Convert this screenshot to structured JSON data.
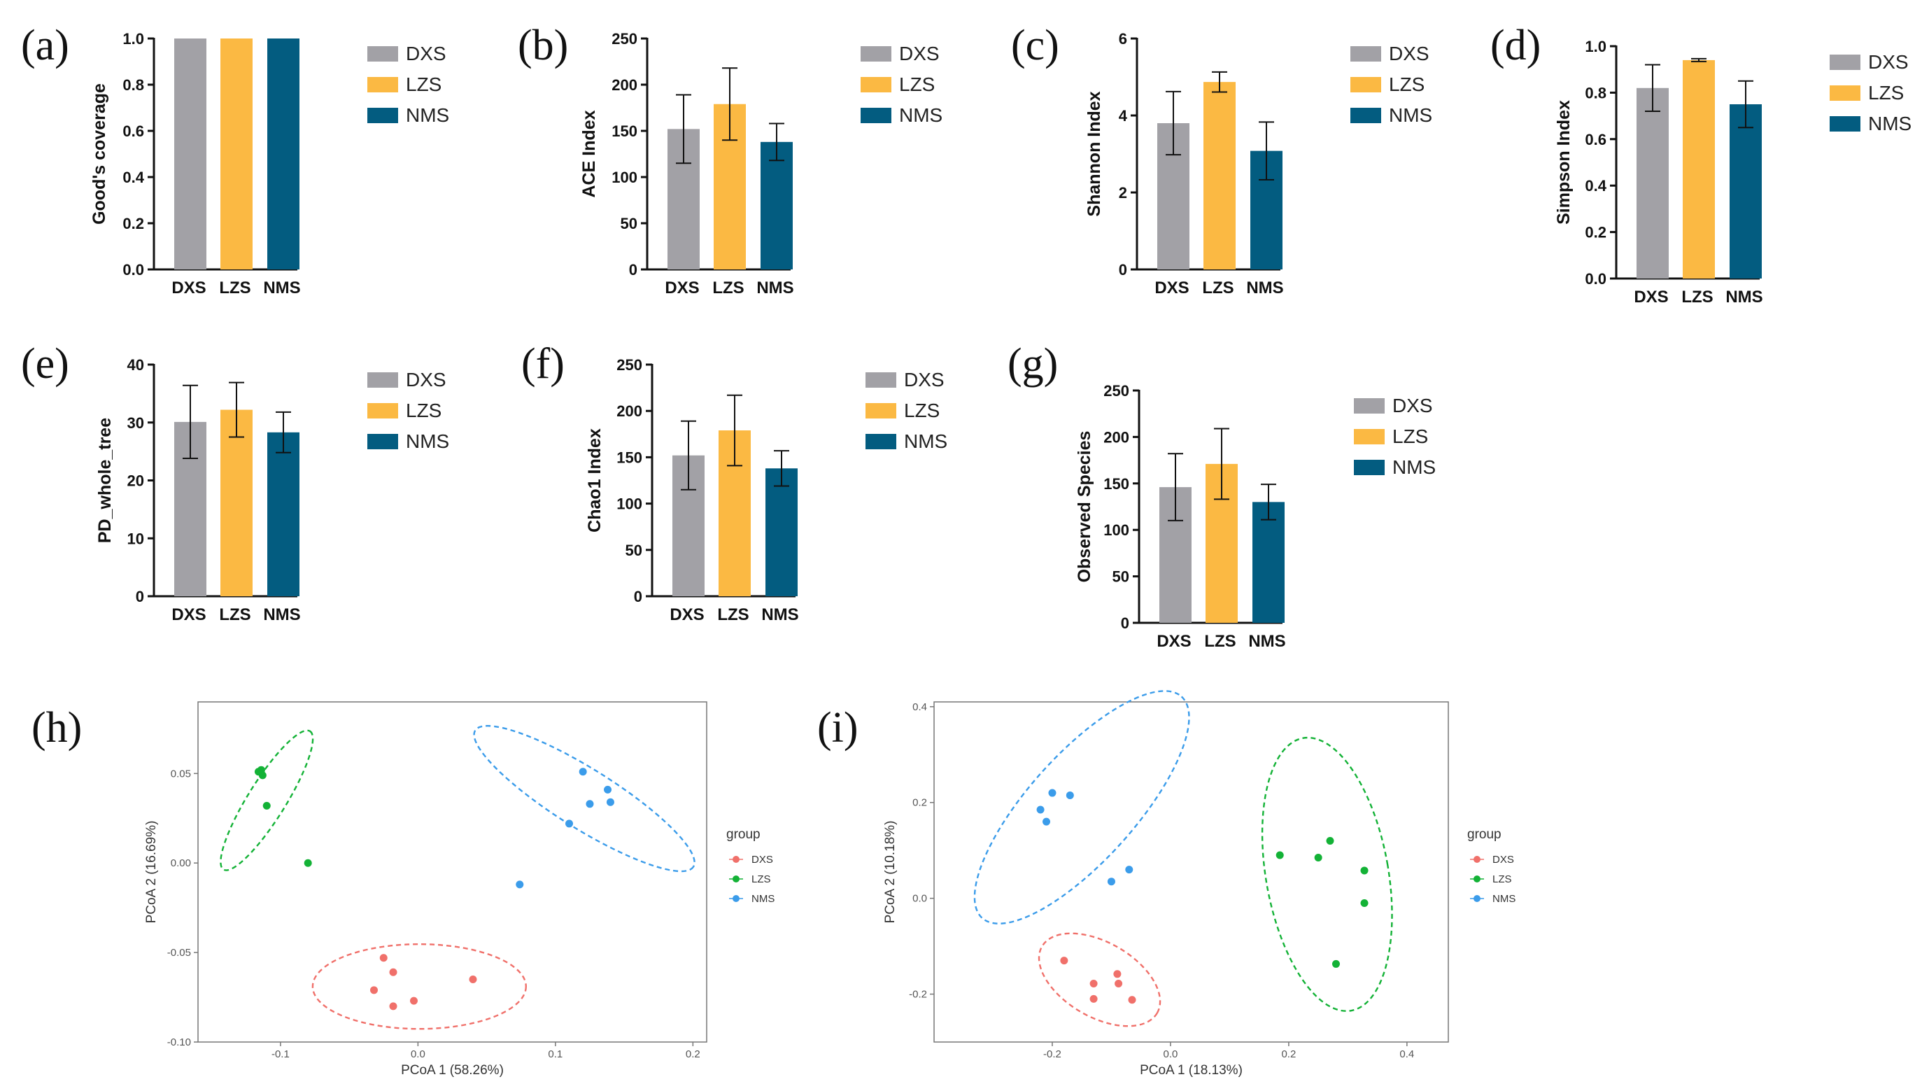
{
  "colors": {
    "DXS": "#A2A1A6",
    "LZS": "#FBB943",
    "NMS": "#035C80"
  },
  "point_colors": {
    "DXS": "#F0706A",
    "LZS": "#13B236",
    "NMS": "#3B9CEA"
  },
  "groups": [
    "DXS",
    "LZS",
    "NMS"
  ],
  "chart_data": [
    {
      "type": "bar",
      "label": "(a)",
      "ylabel": "Good's coverage",
      "categories": [
        "DXS",
        "LZS",
        "NMS"
      ],
      "values": [
        1.0,
        1.0,
        1.0
      ],
      "errors": [
        0,
        0,
        0
      ],
      "ylim": [
        0,
        1.0
      ],
      "yticks": [
        "0.0",
        "0.2",
        "0.4",
        "0.6",
        "0.8",
        "1.0"
      ],
      "legend": [
        "DXS",
        "LZS",
        "NMS"
      ]
    },
    {
      "type": "bar",
      "label": "(b)",
      "ylabel": "ACE Index",
      "categories": [
        "DXS",
        "LZS",
        "NMS"
      ],
      "values": [
        152,
        179,
        138
      ],
      "errors": [
        37,
        39,
        20
      ],
      "ylim": [
        0,
        250
      ],
      "yticks": [
        "0",
        "50",
        "100",
        "150",
        "200",
        "250"
      ],
      "legend": [
        "DXS",
        "LZS",
        "NMS"
      ]
    },
    {
      "type": "bar",
      "label": "(c)",
      "ylabel": "Shannon Index",
      "categories": [
        "DXS",
        "LZS",
        "NMS"
      ],
      "values": [
        3.8,
        4.87,
        3.08
      ],
      "errors": [
        0.82,
        0.26,
        0.75
      ],
      "ylim": [
        0,
        6
      ],
      "yticks": [
        "0",
        "2",
        "4",
        "6"
      ],
      "legend": [
        "DXS",
        "LZS",
        "NMS"
      ]
    },
    {
      "type": "bar",
      "label": "(d)",
      "ylabel": "Simpson Index",
      "categories": [
        "DXS",
        "LZS",
        "NMS"
      ],
      "values": [
        0.82,
        0.94,
        0.75
      ],
      "errors": [
        0.1,
        0.006,
        0.1
      ],
      "ylim": [
        0,
        1.0
      ],
      "yticks": [
        "0.0",
        "0.2",
        "0.4",
        "0.6",
        "0.8",
        "1.0"
      ],
      "legend": [
        "DXS",
        "LZS",
        "NMS"
      ]
    },
    {
      "type": "bar",
      "label": "(e)",
      "ylabel": "PD_whole_tree",
      "categories": [
        "DXS",
        "LZS",
        "NMS"
      ],
      "values": [
        30.1,
        32.2,
        28.3
      ],
      "errors": [
        6.3,
        4.7,
        3.5
      ],
      "ylim": [
        0,
        40
      ],
      "yticks": [
        "0",
        "10",
        "20",
        "30",
        "40"
      ],
      "legend": [
        "DXS",
        "LZS",
        "NMS"
      ]
    },
    {
      "type": "bar",
      "label": "(f)",
      "ylabel": "Chao1 Index",
      "categories": [
        "DXS",
        "LZS",
        "NMS"
      ],
      "values": [
        152,
        179,
        138
      ],
      "errors": [
        37,
        38,
        19
      ],
      "ylim": [
        0,
        250
      ],
      "yticks": [
        "0",
        "50",
        "100",
        "150",
        "200",
        "250"
      ],
      "legend": [
        "DXS",
        "LZS",
        "NMS"
      ]
    },
    {
      "type": "bar",
      "label": "(g)",
      "ylabel": "Observed Species",
      "categories": [
        "DXS",
        "LZS",
        "NMS"
      ],
      "values": [
        146,
        171,
        130
      ],
      "errors": [
        36,
        38,
        19
      ],
      "ylim": [
        0,
        250
      ],
      "yticks": [
        "0",
        "50",
        "100",
        "150",
        "200",
        "250"
      ],
      "legend": [
        "DXS",
        "LZS",
        "NMS"
      ]
    },
    {
      "type": "scatter",
      "label": "(h)",
      "xlabel": "PCoA 1 (58.26%)",
      "ylabel": "PCoA 2 (16.69%)",
      "xlim": [
        -0.16,
        0.21
      ],
      "ylim": [
        -0.1,
        0.09
      ],
      "xticks": [
        -0.1,
        0.0,
        0.1,
        0.2
      ],
      "xtick_labels": [
        "-0.1",
        "0.0",
        "0.1",
        "0.2"
      ],
      "yticks": [
        -0.1,
        -0.05,
        0.0,
        0.05
      ],
      "ytick_labels": [
        "-0.10",
        "-0.05",
        "0.00",
        "0.05"
      ],
      "legend_title": "group",
      "series": [
        {
          "name": "DXS",
          "points": [
            [
              -0.025,
              -0.053
            ],
            [
              -0.018,
              -0.061
            ],
            [
              -0.032,
              -0.071
            ],
            [
              -0.018,
              -0.08
            ],
            [
              -0.003,
              -0.077
            ],
            [
              0.04,
              -0.065
            ]
          ]
        },
        {
          "name": "LZS",
          "points": [
            [
              -0.116,
              0.051
            ],
            [
              -0.114,
              0.052
            ],
            [
              -0.113,
              0.049
            ],
            [
              -0.11,
              0.032
            ],
            [
              -0.08,
              0.0
            ]
          ]
        },
        {
          "name": "NMS",
          "points": [
            [
              0.12,
              0.051
            ],
            [
              0.138,
              0.041
            ],
            [
              0.125,
              0.033
            ],
            [
              0.14,
              0.034
            ],
            [
              0.11,
              0.022
            ],
            [
              0.074,
              -0.012
            ]
          ]
        }
      ],
      "ellipses": [
        {
          "name": "DXS",
          "cx": 0.001,
          "cy": -0.069,
          "rx": 0.068,
          "ry": 0.027,
          "angle": 0
        },
        {
          "name": "LZS",
          "cx": -0.11,
          "cy": 0.035,
          "rx": 0.052,
          "ry": 0.012,
          "angle": -58
        },
        {
          "name": "NMS",
          "cx": 0.121,
          "cy": 0.036,
          "rx": 0.082,
          "ry": 0.019,
          "angle": 32
        }
      ]
    },
    {
      "type": "scatter",
      "label": "(i)",
      "xlabel": "PCoA 1 (18.13%)",
      "ylabel": "PCoA 2 (10.18%)",
      "xlim": [
        -0.4,
        0.47
      ],
      "ylim": [
        -0.3,
        0.41
      ],
      "xticks": [
        -0.2,
        0.0,
        0.2,
        0.4
      ],
      "xtick_labels": [
        "-0.2",
        "0.0",
        "0.2",
        "0.4"
      ],
      "yticks": [
        -0.2,
        0.0,
        0.2,
        0.4
      ],
      "ytick_labels": [
        "-0.2",
        "0.0",
        "0.2",
        "0.4"
      ],
      "legend_title": "group",
      "series": [
        {
          "name": "DXS",
          "points": [
            [
              -0.18,
              -0.13
            ],
            [
              -0.13,
              -0.178
            ],
            [
              -0.09,
              -0.158
            ],
            [
              -0.088,
              -0.178
            ],
            [
              -0.13,
              -0.21
            ],
            [
              -0.065,
              -0.212
            ]
          ]
        },
        {
          "name": "LZS",
          "points": [
            [
              0.27,
              0.12
            ],
            [
              0.185,
              0.09
            ],
            [
              0.25,
              0.085
            ],
            [
              0.328,
              0.058
            ],
            [
              0.328,
              -0.01
            ],
            [
              0.28,
              -0.137
            ]
          ]
        },
        {
          "name": "NMS",
          "points": [
            [
              -0.2,
              0.22
            ],
            [
              -0.17,
              0.215
            ],
            [
              -0.22,
              0.185
            ],
            [
              -0.21,
              0.16
            ],
            [
              -0.07,
              0.06
            ],
            [
              -0.1,
              0.035
            ]
          ]
        }
      ],
      "ellipses": [
        {
          "name": "DXS",
          "cx": -0.12,
          "cy": -0.17,
          "rx": 0.125,
          "ry": 0.07,
          "angle": 30
        },
        {
          "name": "LZS",
          "cx": 0.265,
          "cy": 0.05,
          "rx": 0.115,
          "ry": 0.26,
          "angle": -10
        },
        {
          "name": "NMS",
          "cx": -0.15,
          "cy": 0.19,
          "rx": 0.28,
          "ry": 0.1,
          "angle": -48
        }
      ]
    }
  ]
}
